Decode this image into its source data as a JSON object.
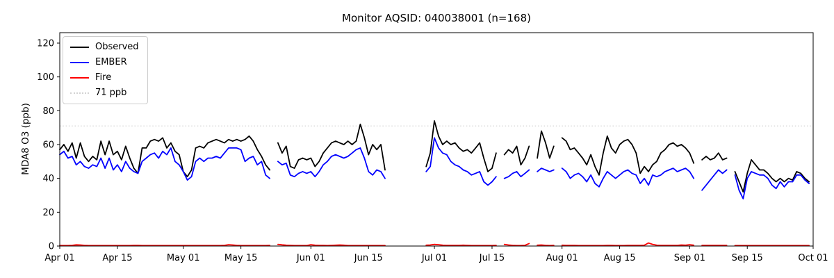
{
  "chart_data": {
    "type": "line",
    "title": "Monitor AQSID: 040038001 (n=168)",
    "ylabel": "MDA8 O3 (ppb)",
    "xlabel": "",
    "n_points": 168,
    "grid": false,
    "legend_position": "upper left",
    "y_ticks": [
      0,
      20,
      40,
      60,
      80,
      100,
      120
    ],
    "ylim": [
      0,
      126
    ],
    "x_start_date": "Apr 01",
    "x_end_date": "Oct 01",
    "x_ticks": [
      {
        "label": "Apr 01",
        "day": 0
      },
      {
        "label": "Apr 15",
        "day": 14
      },
      {
        "label": "May 01",
        "day": 30
      },
      {
        "label": "May 15",
        "day": 44
      },
      {
        "label": "Jun 01",
        "day": 61
      },
      {
        "label": "Jun 15",
        "day": 75
      },
      {
        "label": "Jul 01",
        "day": 91
      },
      {
        "label": "Jul 15",
        "day": 105
      },
      {
        "label": "Aug 01",
        "day": 122
      },
      {
        "label": "Aug 15",
        "day": 136
      },
      {
        "label": "Sep 01",
        "day": 153
      },
      {
        "label": "Sep 15",
        "day": 167
      },
      {
        "label": "Oct 01",
        "day": 183
      }
    ],
    "threshold": {
      "label": "71 ppb",
      "value": 71,
      "color": "#d2d2d2",
      "style": "dotted"
    },
    "series": [
      {
        "name": "Observed",
        "color": "#000000",
        "values": [
          57,
          60,
          56,
          61,
          52,
          61,
          53,
          50,
          53,
          51,
          62,
          54,
          62,
          54,
          56,
          51,
          59,
          52,
          46,
          43,
          58,
          58,
          62,
          63,
          62,
          64,
          58,
          61,
          56,
          54,
          44,
          41,
          45,
          58,
          59,
          58,
          61,
          62,
          63,
          62,
          61,
          63,
          62,
          63,
          62,
          63,
          65,
          62,
          57,
          53,
          48,
          45,
          null,
          61,
          55,
          59,
          47,
          46,
          51,
          52,
          51,
          52,
          47,
          50,
          55,
          58,
          61,
          62,
          61,
          60,
          62,
          60,
          62,
          72,
          64,
          54,
          60,
          57,
          60,
          45,
          null,
          null,
          null,
          null,
          null,
          null,
          null,
          null,
          null,
          47,
          55,
          74,
          65,
          60,
          62,
          60,
          61,
          58,
          56,
          57,
          55,
          58,
          61,
          52,
          44,
          46,
          55,
          null,
          54,
          57,
          55,
          59,
          48,
          52,
          59,
          null,
          52,
          68,
          61,
          52,
          59,
          null,
          64,
          62,
          57,
          58,
          55,
          52,
          48,
          54,
          47,
          42,
          55,
          65,
          58,
          55,
          60,
          62,
          63,
          60,
          55,
          43,
          47,
          44,
          48,
          50,
          55,
          57,
          60,
          61,
          59,
          60,
          58,
          55,
          49,
          null,
          51,
          53,
          51,
          52,
          55,
          51,
          52,
          null,
          44,
          38,
          32,
          43,
          51,
          48,
          45,
          45,
          43,
          40,
          38,
          40,
          38,
          40,
          39,
          44,
          43,
          40,
          38
        ]
      },
      {
        "name": "EMBER",
        "color": "#0000ff",
        "values": [
          54,
          56,
          52,
          53,
          48,
          50,
          47,
          46,
          48,
          47,
          52,
          46,
          52,
          45,
          48,
          44,
          50,
          46,
          44,
          43,
          50,
          52,
          54,
          55,
          52,
          56,
          54,
          58,
          50,
          48,
          44,
          39,
          41,
          50,
          52,
          50,
          52,
          52,
          53,
          52,
          55,
          58,
          58,
          58,
          57,
          50,
          52,
          53,
          48,
          50,
          42,
          40,
          null,
          50,
          48,
          49,
          42,
          41,
          43,
          44,
          43,
          44,
          41,
          44,
          48,
          50,
          53,
          54,
          53,
          52,
          53,
          55,
          57,
          58,
          52,
          44,
          42,
          45,
          44,
          40,
          null,
          null,
          null,
          null,
          null,
          null,
          null,
          null,
          null,
          44,
          47,
          64,
          58,
          55,
          54,
          50,
          48,
          47,
          45,
          44,
          42,
          43,
          44,
          38,
          36,
          38,
          41,
          null,
          40,
          41,
          43,
          44,
          41,
          43,
          45,
          null,
          44,
          46,
          45,
          44,
          45,
          null,
          46,
          44,
          40,
          42,
          43,
          41,
          38,
          42,
          37,
          35,
          40,
          44,
          42,
          40,
          42,
          44,
          45,
          43,
          42,
          37,
          40,
          36,
          42,
          41,
          42,
          44,
          45,
          46,
          44,
          45,
          46,
          44,
          40,
          null,
          33,
          36,
          39,
          42,
          45,
          43,
          45,
          null,
          42,
          33,
          28,
          40,
          44,
          43,
          42,
          42,
          40,
          36,
          34,
          38,
          35,
          38,
          38,
          42,
          42,
          39,
          37
        ]
      },
      {
        "name": "Fire",
        "color": "#ff0000",
        "values": [
          0.3,
          0.3,
          0.3,
          0.4,
          0.7,
          0.6,
          0.4,
          0.3,
          0.3,
          0.3,
          0.3,
          0.3,
          0.3,
          0.3,
          0.3,
          0.3,
          0.3,
          0.3,
          0.4,
          0.4,
          0.3,
          0.3,
          0.3,
          0.3,
          0.3,
          0.3,
          0.3,
          0.3,
          0.3,
          0.3,
          0.3,
          0.3,
          0.3,
          0.3,
          0.3,
          0.3,
          0.3,
          0.3,
          0.3,
          0.3,
          0.4,
          0.8,
          0.6,
          0.4,
          0.3,
          0.3,
          0.3,
          0.3,
          0.3,
          0.3,
          0.3,
          0.4,
          null,
          1.0,
          0.7,
          0.5,
          0.4,
          0.3,
          0.3,
          0.3,
          0.3,
          0.8,
          0.5,
          0.4,
          0.4,
          0.3,
          0.4,
          0.5,
          0.6,
          0.5,
          0.3,
          0.3,
          0.3,
          0.3,
          0.3,
          0.3,
          0.3,
          0.3,
          0.3,
          0.3,
          null,
          null,
          null,
          null,
          null,
          null,
          null,
          null,
          null,
          0.5,
          0.6,
          1.0,
          0.8,
          0.5,
          0.4,
          0.4,
          0.4,
          0.4,
          0.5,
          0.4,
          0.3,
          0.3,
          0.3,
          0.3,
          0.3,
          0.3,
          0.4,
          null,
          1.0,
          0.6,
          0.4,
          0.3,
          0.3,
          0.4,
          1.5,
          null,
          0.5,
          0.6,
          0.4,
          0.3,
          0.4,
          null,
          0.5,
          0.4,
          0.4,
          0.4,
          0.3,
          0.3,
          0.3,
          0.3,
          0.3,
          0.3,
          0.3,
          0.4,
          0.4,
          0.3,
          0.3,
          0.3,
          0.4,
          0.4,
          0.4,
          0.4,
          0.5,
          1.8,
          1.0,
          0.5,
          0.4,
          0.4,
          0.4,
          0.4,
          0.4,
          0.6,
          0.5,
          0.8,
          0.5,
          null,
          0.4,
          0.4,
          0.4,
          0.4,
          0.4,
          0.4,
          0.4,
          null,
          0.3,
          0.3,
          0.3,
          0.3,
          0.3,
          0.3,
          0.3,
          0.3,
          0.3,
          0.3,
          0.3,
          0.3,
          0.3,
          0.3,
          0.3,
          0.3,
          0.3,
          0.3,
          0.3
        ]
      }
    ]
  }
}
